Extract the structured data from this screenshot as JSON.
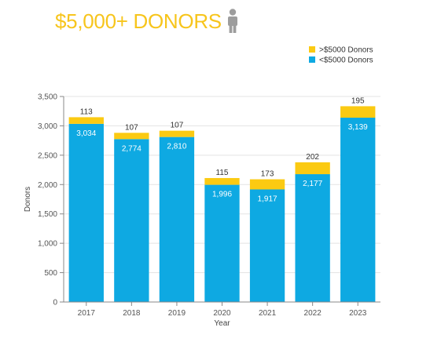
{
  "header": {
    "title": "$5,000+ DONORS",
    "icon": "person-icon",
    "accent": "#f7c51c",
    "icon_color": "#9d9d9d"
  },
  "chart_data": {
    "type": "bar",
    "stacked": true,
    "categories": [
      "2017",
      "2018",
      "2019",
      "2020",
      "2021",
      "2022",
      "2023"
    ],
    "series": [
      {
        "name": "<$5000 Donors",
        "color": "#0ea9e2",
        "values": [
          3034,
          2774,
          2810,
          1996,
          1917,
          2177,
          3139
        ]
      },
      {
        "name": ">$5000 Donors",
        "color": "#fbca12",
        "values": [
          113,
          107,
          107,
          115,
          173,
          202,
          195
        ]
      }
    ],
    "xlabel": "Year",
    "ylabel": "Donors",
    "ylim": [
      0,
      3500
    ],
    "yticks": [
      0,
      500,
      1000,
      1500,
      2000,
      2500,
      3000,
      3500
    ],
    "ytick_labels": [
      "0",
      "500",
      "1,000",
      "1,500",
      "2,000",
      "2,500",
      "3,000",
      "3,500"
    ],
    "grid": true,
    "legend": {
      "position": "top-right",
      "order": [
        ">$5000 Donors",
        "<$5000 Donors"
      ]
    }
  }
}
